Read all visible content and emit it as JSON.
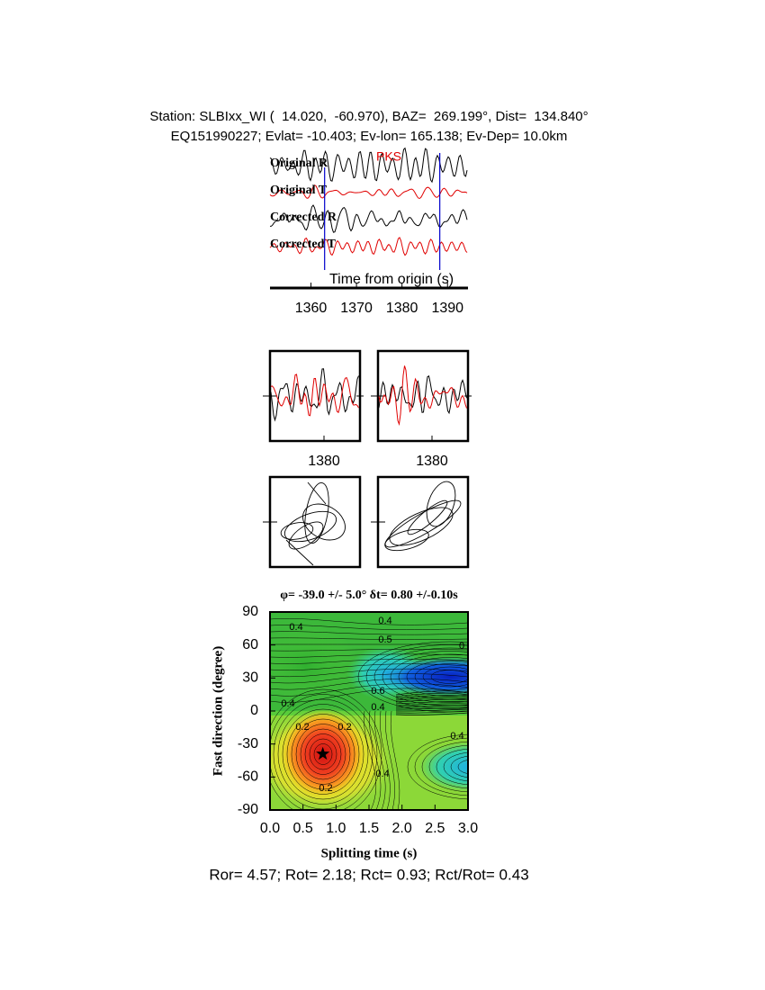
{
  "header": {
    "line1": "Station: SLBIxx_WI (  14.020,  -60.970), BAZ=  269.199°, Dist=  134.840°",
    "line2": "EQ151990227; Evlat= -10.403; Ev-lon= 165.138; Ev-Dep= 10.0km"
  },
  "footer": "Ror= 4.57; Rot= 2.18; Rct= 0.93; Rct/Rot= 0.43",
  "chart_data": [
    {
      "type": "waveforms",
      "xlabel": "Time from origin (s)",
      "xlim": [
        1351,
        1394.5
      ],
      "xticks": [
        1360,
        1370,
        1380,
        1390
      ],
      "series": [
        {
          "name": "Original R",
          "color": "#000000"
        },
        {
          "name": "Original T",
          "color": "#e00000"
        },
        {
          "name": "Corrected R",
          "color": "#000000"
        },
        {
          "name": "Corrected T",
          "color": "#e00000"
        }
      ],
      "phase": "PKS",
      "phase_color": "#e00000",
      "window": [
        1363,
        1388.3
      ],
      "window_color": "#0000cc"
    },
    {
      "type": "waveforms",
      "xlim": [
        1368,
        1388
      ],
      "xticks": [
        1380
      ],
      "series": [
        {
          "color": "#000000"
        },
        {
          "color": "#e00000"
        }
      ]
    },
    {
      "type": "waveforms",
      "xlim": [
        1368,
        1388
      ],
      "xticks": [
        1380
      ],
      "series": [
        {
          "color": "#000000"
        },
        {
          "color": "#e00000"
        }
      ]
    },
    {
      "type": "contour",
      "title": "φ= -39.0 +/- 5.0° δt= 0.80 +/-0.10s",
      "xlabel": "Splitting time (s)",
      "ylabel": "Fast direction (degree)",
      "xlim": [
        0,
        3
      ],
      "xticks": [
        {
          "value": 0,
          "label": "0.0"
        },
        0.5,
        {
          "value": 1,
          "label": "1.0"
        },
        1.5,
        {
          "value": 2,
          "label": "2.0"
        },
        2.5,
        {
          "value": 3,
          "label": "3.0"
        }
      ],
      "ylim": [
        -90,
        90
      ],
      "yticks": [
        -90,
        -60,
        -30,
        0,
        30,
        60,
        90
      ],
      "contour_labels": [
        0.4,
        0.4,
        0.5,
        0,
        0.6,
        0.4,
        0.4,
        0.2,
        0.2,
        0.4,
        0.2,
        0.4
      ],
      "markers": [
        {
          "x": 0.8,
          "y": -39
        }
      ]
    }
  ]
}
